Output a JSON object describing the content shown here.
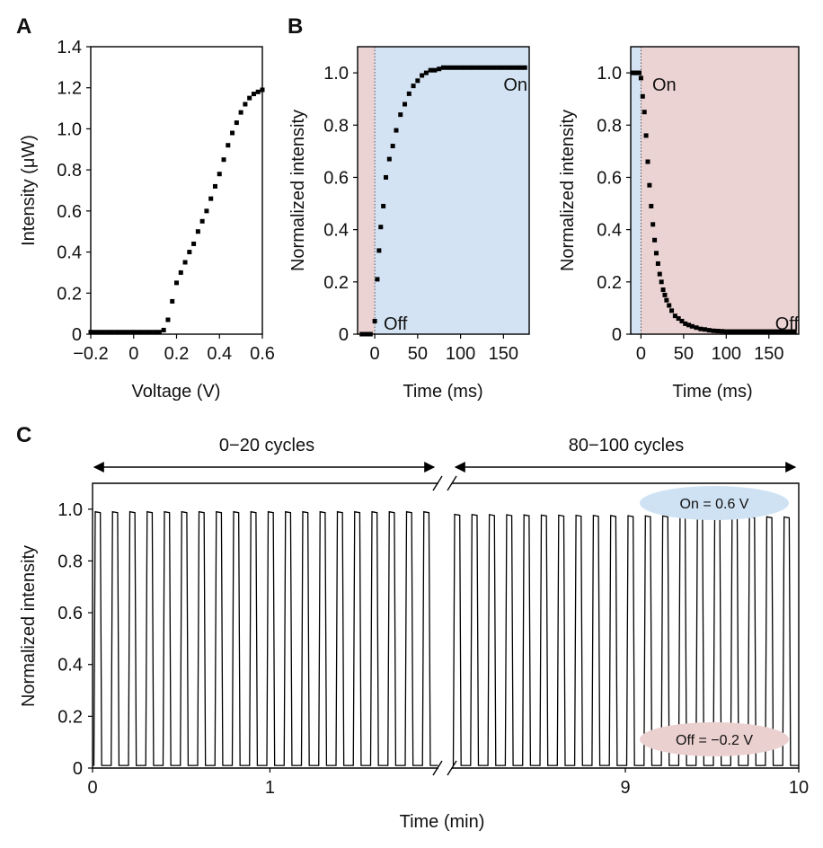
{
  "figure": {
    "panels": [
      {
        "letter": "A"
      },
      {
        "letter": "B"
      },
      {
        "letter": "C"
      }
    ]
  },
  "chart_data": [
    {
      "id": "A",
      "type": "scatter",
      "title": "",
      "xlabel": "Voltage (V)",
      "ylabel": "Intensity (μW)",
      "xlim": [
        -0.2,
        0.6
      ],
      "ylim": [
        0,
        1.4
      ],
      "xticks": [
        {
          "v": -0.2,
          "label": "−0.2"
        },
        {
          "v": 0,
          "label": "0"
        },
        {
          "v": 0.2,
          "label": "0.2"
        },
        {
          "v": 0.4,
          "label": "0.4"
        },
        {
          "v": 0.6,
          "label": "0.6"
        }
      ],
      "yticks": [
        {
          "v": 0,
          "label": "0"
        },
        {
          "v": 0.2,
          "label": "0.2"
        },
        {
          "v": 0.4,
          "label": "0.4"
        },
        {
          "v": 0.6,
          "label": "0.6"
        },
        {
          "v": 0.8,
          "label": "0.8"
        },
        {
          "v": 1.0,
          "label": "1.0"
        },
        {
          "v": 1.2,
          "label": "1.2"
        },
        {
          "v": 1.4,
          "label": "1.4"
        }
      ],
      "x": [
        -0.2,
        -0.18,
        -0.16,
        -0.14,
        -0.12,
        -0.1,
        -0.08,
        -0.06,
        -0.04,
        -0.02,
        0.0,
        0.02,
        0.04,
        0.06,
        0.08,
        0.1,
        0.12,
        0.14,
        0.16,
        0.18,
        0.2,
        0.22,
        0.24,
        0.26,
        0.28,
        0.3,
        0.32,
        0.34,
        0.36,
        0.38,
        0.4,
        0.42,
        0.44,
        0.46,
        0.48,
        0.5,
        0.52,
        0.54,
        0.56,
        0.58,
        0.6
      ],
      "y": [
        0.01,
        0.01,
        0.01,
        0.01,
        0.01,
        0.01,
        0.01,
        0.01,
        0.01,
        0.01,
        0.01,
        0.01,
        0.01,
        0.01,
        0.01,
        0.01,
        0.01,
        0.02,
        0.07,
        0.16,
        0.25,
        0.3,
        0.35,
        0.4,
        0.44,
        0.5,
        0.55,
        0.6,
        0.66,
        0.72,
        0.78,
        0.85,
        0.92,
        0.98,
        1.03,
        1.08,
        1.12,
        1.15,
        1.17,
        1.18,
        1.19
      ]
    },
    {
      "id": "B-rise",
      "type": "scatter",
      "title": "",
      "xlabel": "Time (ms)",
      "ylabel": "Normalized intensity",
      "xlim": [
        -20,
        180
      ],
      "ylim": [
        0,
        1.1
      ],
      "xticks": [
        {
          "v": 0,
          "label": "0"
        },
        {
          "v": 50,
          "label": "50"
        },
        {
          "v": 100,
          "label": "100"
        },
        {
          "v": 150,
          "label": "150"
        }
      ],
      "yticks": [
        {
          "v": 0,
          "label": "0"
        },
        {
          "v": 0.2,
          "label": "0.2"
        },
        {
          "v": 0.4,
          "label": "0.4"
        },
        {
          "v": 0.6,
          "label": "0.6"
        },
        {
          "v": 0.8,
          "label": "0.8"
        },
        {
          "v": 1.0,
          "label": "1.0"
        }
      ],
      "shading": [
        {
          "from": -20,
          "to": 0,
          "color": "#ecd3d3"
        },
        {
          "from": 0,
          "to": 180,
          "color": "#d3e3f3"
        }
      ],
      "switch_time": 0,
      "annotations": [
        {
          "text": "Off"
        },
        {
          "text": "On"
        }
      ],
      "x": [
        -15,
        -10,
        -5,
        0,
        3,
        5,
        7,
        10,
        13,
        17,
        21,
        25,
        30,
        35,
        40,
        45,
        50,
        55,
        60,
        65,
        70,
        75,
        80,
        85,
        90,
        95,
        100,
        105,
        110,
        115,
        120,
        125,
        130,
        135,
        140,
        145,
        150,
        155,
        160,
        165,
        170,
        175
      ],
      "y": [
        0.0,
        0.0,
        0.0,
        0.05,
        0.21,
        0.32,
        0.41,
        0.49,
        0.6,
        0.67,
        0.72,
        0.78,
        0.84,
        0.88,
        0.92,
        0.95,
        0.97,
        0.99,
        1.0,
        1.01,
        1.01,
        1.015,
        1.02,
        1.02,
        1.02,
        1.02,
        1.02,
        1.02,
        1.02,
        1.02,
        1.02,
        1.02,
        1.02,
        1.02,
        1.02,
        1.02,
        1.02,
        1.02,
        1.02,
        1.02,
        1.02,
        1.02
      ]
    },
    {
      "id": "B-decay",
      "type": "scatter",
      "title": "",
      "xlabel": "Time (ms)",
      "ylabel": "Normalized intensity",
      "xlim": [
        -12,
        185
      ],
      "ylim": [
        0,
        1.1
      ],
      "xticks": [
        {
          "v": 0,
          "label": "0"
        },
        {
          "v": 50,
          "label": "50"
        },
        {
          "v": 100,
          "label": "100"
        },
        {
          "v": 150,
          "label": "150"
        }
      ],
      "yticks": [
        {
          "v": 0,
          "label": "0"
        },
        {
          "v": 0.2,
          "label": "0.2"
        },
        {
          "v": 0.4,
          "label": "0.4"
        },
        {
          "v": 0.6,
          "label": "0.6"
        },
        {
          "v": 0.8,
          "label": "0.8"
        },
        {
          "v": 1.0,
          "label": "1.0"
        }
      ],
      "shading": [
        {
          "from": -12,
          "to": 0,
          "color": "#d3e3f3"
        },
        {
          "from": 0,
          "to": 185,
          "color": "#ecd3d3"
        }
      ],
      "switch_time": 0,
      "annotations": [
        {
          "text": "On"
        },
        {
          "text": "Off"
        }
      ],
      "x": [
        -10,
        -8,
        -6,
        -4,
        -2,
        0,
        2,
        4,
        6,
        8,
        10,
        12,
        14,
        16,
        18,
        20,
        22,
        24,
        26,
        28,
        30,
        33,
        36,
        40,
        44,
        48,
        52,
        56,
        60,
        65,
        70,
        75,
        80,
        85,
        90,
        95,
        100,
        105,
        110,
        115,
        120,
        125,
        130,
        135,
        140,
        145,
        150,
        155,
        160,
        165,
        170,
        175,
        180
      ],
      "y": [
        1.0,
        1.0,
        1.0,
        1.0,
        1.0,
        0.98,
        0.91,
        0.85,
        0.76,
        0.66,
        0.57,
        0.49,
        0.42,
        0.36,
        0.31,
        0.27,
        0.23,
        0.2,
        0.17,
        0.15,
        0.13,
        0.11,
        0.09,
        0.07,
        0.06,
        0.05,
        0.04,
        0.035,
        0.03,
        0.025,
        0.02,
        0.018,
        0.015,
        0.013,
        0.012,
        0.011,
        0.01,
        0.01,
        0.01,
        0.01,
        0.01,
        0.01,
        0.01,
        0.01,
        0.01,
        0.01,
        0.01,
        0.01,
        0.01,
        0.01,
        0.01,
        0.01,
        0.01
      ]
    },
    {
      "id": "C",
      "type": "line",
      "title": "",
      "xlabel": "Time (min)",
      "ylabel": "Normalized intensity",
      "ylim": [
        0,
        1.1
      ],
      "yticks": [
        {
          "v": 0,
          "label": "0"
        },
        {
          "v": 0.2,
          "label": "0.2"
        },
        {
          "v": 0.4,
          "label": "0.4"
        },
        {
          "v": 0.6,
          "label": "0.6"
        },
        {
          "v": 0.8,
          "label": "0.8"
        },
        {
          "v": 1.0,
          "label": "1.0"
        }
      ],
      "segments": [
        {
          "label": "0−20 cycles",
          "t_start": 0,
          "t_end": 1.95,
          "xticks": [
            {
              "v": 0,
              "label": "0"
            },
            {
              "v": 1,
              "label": "1"
            }
          ],
          "cycles": 20,
          "on_level_start": 0.99,
          "on_level_end": 0.99,
          "off_level": 0.01
        },
        {
          "label": "80−100 cycles",
          "t_start": 8.0,
          "t_end": 10.0,
          "xticks": [
            {
              "v": 9,
              "label": "9"
            },
            {
              "v": 10,
              "label": "10"
            }
          ],
          "cycles": 20,
          "on_level_start": 0.98,
          "on_level_end": 0.97,
          "off_level": 0.01
        }
      ],
      "pills": [
        {
          "text": "On = 0.6 V",
          "color": "#cfe2f3"
        },
        {
          "text": "Off = −0.2 V",
          "color": "#ebd0d0"
        }
      ]
    }
  ]
}
